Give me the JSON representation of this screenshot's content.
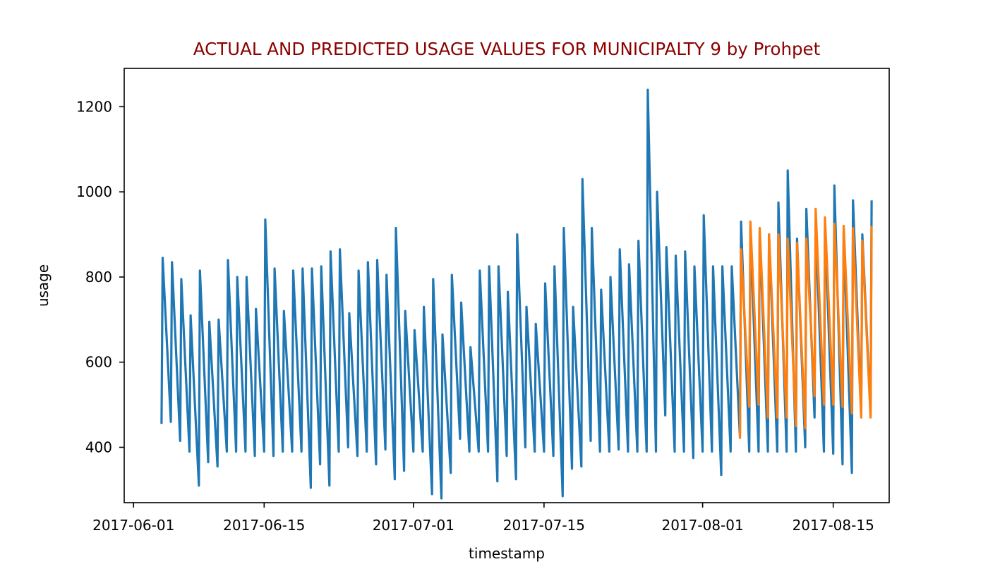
{
  "chart_data": {
    "type": "line",
    "title": "ACTUAL AND PREDICTED USAGE VALUES FOR MUNICIPALTY 9 by Prohpet",
    "title_color": "#8b0000",
    "xlabel": "timestamp",
    "ylabel": "usage",
    "xlim": [
      "2017-05-31",
      "2017-08-21"
    ],
    "ylim": [
      270,
      1290
    ],
    "xticks": [
      "2017-06-01",
      "2017-06-15",
      "2017-07-01",
      "2017-07-15",
      "2017-08-01",
      "2017-08-15"
    ],
    "yticks": [
      400,
      600,
      800,
      1000,
      1200
    ],
    "grid": false,
    "series": [
      {
        "color": "#1f77b4",
        "x": [
          "2017-06-04",
          "2017-06-05",
          "2017-06-06",
          "2017-06-07",
          "2017-06-08",
          "2017-06-09",
          "2017-06-10",
          "2017-06-11",
          "2017-06-12",
          "2017-06-13",
          "2017-06-14",
          "2017-06-15",
          "2017-06-16",
          "2017-06-17",
          "2017-06-18",
          "2017-06-19",
          "2017-06-20",
          "2017-06-21",
          "2017-06-22",
          "2017-06-23",
          "2017-06-24",
          "2017-06-25",
          "2017-06-26",
          "2017-06-27",
          "2017-06-28",
          "2017-06-29",
          "2017-06-30",
          "2017-07-01",
          "2017-07-02",
          "2017-07-03",
          "2017-07-04",
          "2017-07-05",
          "2017-07-06",
          "2017-07-07",
          "2017-07-08",
          "2017-07-09",
          "2017-07-10",
          "2017-07-11",
          "2017-07-12",
          "2017-07-13",
          "2017-07-14",
          "2017-07-15",
          "2017-07-16",
          "2017-07-17",
          "2017-07-18",
          "2017-07-19",
          "2017-07-20",
          "2017-07-21",
          "2017-07-22",
          "2017-07-23",
          "2017-07-24",
          "2017-07-25",
          "2017-07-26",
          "2017-07-27",
          "2017-07-28",
          "2017-07-29",
          "2017-07-30",
          "2017-07-31",
          "2017-08-01",
          "2017-08-02",
          "2017-08-03",
          "2017-08-04",
          "2017-08-05",
          "2017-08-06",
          "2017-08-07",
          "2017-08-08",
          "2017-08-09",
          "2017-08-10",
          "2017-08-11",
          "2017-08-12",
          "2017-08-13",
          "2017-08-14",
          "2017-08-15",
          "2017-08-16",
          "2017-08-17",
          "2017-08-18",
          "2017-08-19"
        ],
        "low": [
          455,
          460,
          415,
          390,
          310,
          365,
          355,
          390,
          390,
          390,
          380,
          390,
          380,
          390,
          390,
          390,
          305,
          360,
          310,
          390,
          400,
          380,
          390,
          360,
          395,
          325,
          345,
          390,
          390,
          290,
          280,
          340,
          420,
          390,
          390,
          390,
          320,
          380,
          325,
          400,
          390,
          390,
          380,
          285,
          350,
          355,
          415,
          390,
          390,
          395,
          390,
          390,
          390,
          390,
          475,
          390,
          390,
          375,
          390,
          390,
          335,
          390,
          425,
          390,
          390,
          390,
          390,
          390,
          390,
          400,
          470,
          390,
          385,
          360,
          340,
          480,
          480
        ],
        "high": [
          845,
          835,
          795,
          710,
          815,
          695,
          700,
          840,
          800,
          800,
          725,
          935,
          820,
          720,
          815,
          820,
          820,
          825,
          860,
          865,
          715,
          815,
          835,
          840,
          805,
          915,
          720,
          675,
          730,
          795,
          665,
          805,
          740,
          635,
          815,
          825,
          825,
          765,
          900,
          730,
          690,
          785,
          825,
          915,
          730,
          1030,
          915,
          770,
          800,
          865,
          830,
          885,
          1240,
          1000,
          870,
          850,
          860,
          825,
          945,
          825,
          825,
          825,
          930,
          910,
          905,
          900,
          975,
          1050,
          890,
          960,
          930,
          920,
          1015,
          905,
          980,
          900,
          980
        ]
      },
      {
        "color": "#ff7f0e",
        "x": [
          "2017-08-05",
          "2017-08-06",
          "2017-08-07",
          "2017-08-08",
          "2017-08-09",
          "2017-08-10",
          "2017-08-11",
          "2017-08-12",
          "2017-08-13",
          "2017-08-14",
          "2017-08-15",
          "2017-08-16",
          "2017-08-17",
          "2017-08-18",
          "2017-08-19"
        ],
        "low": [
          420,
          495,
          500,
          470,
          470,
          470,
          450,
          445,
          520,
          500,
          500,
          495,
          480,
          470,
          470
        ],
        "high": [
          865,
          930,
          915,
          900,
          900,
          890,
          880,
          890,
          960,
          940,
          925,
          920,
          915,
          885,
          920
        ]
      }
    ]
  }
}
